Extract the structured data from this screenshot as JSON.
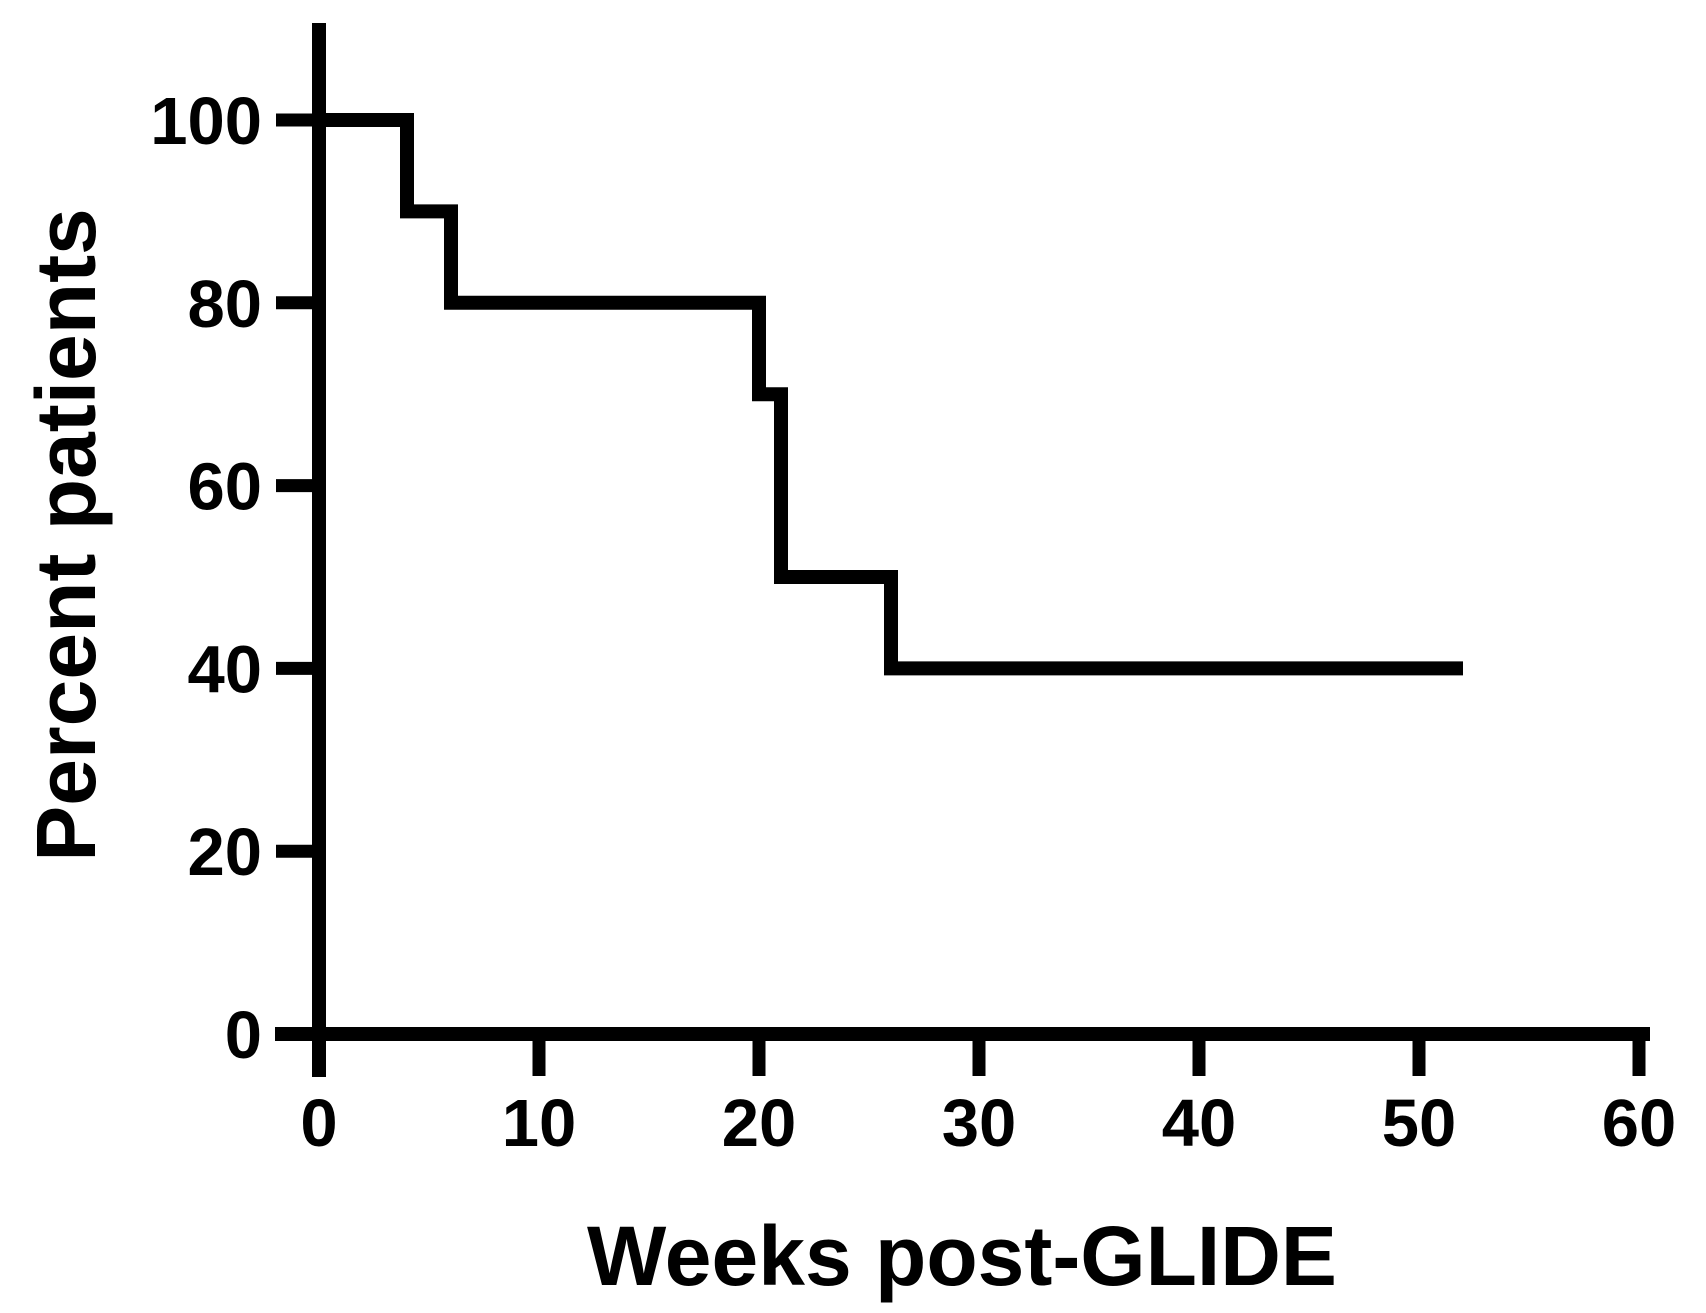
{
  "chart_data": {
    "type": "line",
    "subtype": "kaplan-meier-step",
    "title": "",
    "xlabel": "Weeks post-GLIDE",
    "ylabel": "Percent patients",
    "xlim": [
      0,
      60
    ],
    "ylim": [
      0,
      100
    ],
    "x_ticks": [
      0,
      10,
      20,
      30,
      40,
      50,
      60
    ],
    "y_ticks": [
      0,
      20,
      40,
      60,
      80,
      100
    ],
    "grid": false,
    "legend_position": "none",
    "series": [
      {
        "name": "Percent patients",
        "color": "#000000",
        "points": [
          {
            "x": 0,
            "y": 100
          },
          {
            "x": 4,
            "y": 100
          },
          {
            "x": 4,
            "y": 90
          },
          {
            "x": 6,
            "y": 90
          },
          {
            "x": 6,
            "y": 80
          },
          {
            "x": 20,
            "y": 80
          },
          {
            "x": 20,
            "y": 70
          },
          {
            "x": 21,
            "y": 70
          },
          {
            "x": 21,
            "y": 50
          },
          {
            "x": 26,
            "y": 50
          },
          {
            "x": 26,
            "y": 40
          },
          {
            "x": 52,
            "y": 40
          }
        ]
      }
    ],
    "step_down_weeks": [
      4,
      6,
      20,
      21,
      26
    ],
    "final_value_percent": 40,
    "curve_end_week": 52
  },
  "colors": {
    "line": "#000000",
    "axis": "#000000",
    "text": "#000000",
    "background": "#ffffff"
  }
}
